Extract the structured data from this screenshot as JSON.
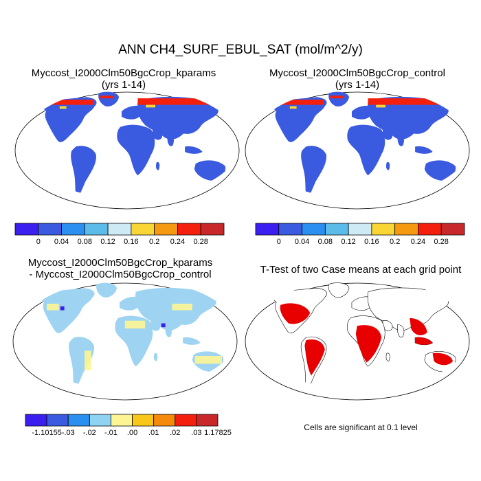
{
  "main_title": "ANN CH4_SURF_EBUL_SAT (mol/m^2/y)",
  "panels": [
    {
      "title_line1": "Myccost_I2000Clm50BgcCrop_kparams",
      "title_line2": "(yrs 1-14)"
    },
    {
      "title_line1": "Myccost_I2000Clm50BgcCrop_control",
      "title_line2": "(yrs 1-14)"
    },
    {
      "title_line1": "Myccost_I2000Clm50BgcCrop_kparams",
      "title_line2": "- Myccost_I2000Clm50BgcCrop_control"
    },
    {
      "title_line1": "T-Test of two Case means at each grid point",
      "title_line2": ""
    }
  ],
  "colorbar_main": {
    "colors": [
      "#3b1ff0",
      "#3a5ae0",
      "#2a8ff0",
      "#5bbcea",
      "#cdeaf5",
      "#f9d635",
      "#f59a10",
      "#f51f0e",
      "#c8282a"
    ],
    "labels": [
      "0",
      "0.04",
      "0.08",
      "0.12",
      "0.16",
      "0.2",
      "0.24",
      "0.28"
    ]
  },
  "colorbar_diff": {
    "colors": [
      "#3b1ff0",
      "#3a5ae0",
      "#2a8ff0",
      "#8ed4f2",
      "#fdf593",
      "#f9c71a",
      "#f58a0c",
      "#f51f0e",
      "#c8282a"
    ],
    "labels": [
      "-1.10155",
      "-.03",
      "-.02",
      "-.01",
      ".00",
      ".01",
      ".02",
      ".03",
      "1.17825"
    ]
  },
  "ttest_note": "Cells are significant at 0.1 level"
}
